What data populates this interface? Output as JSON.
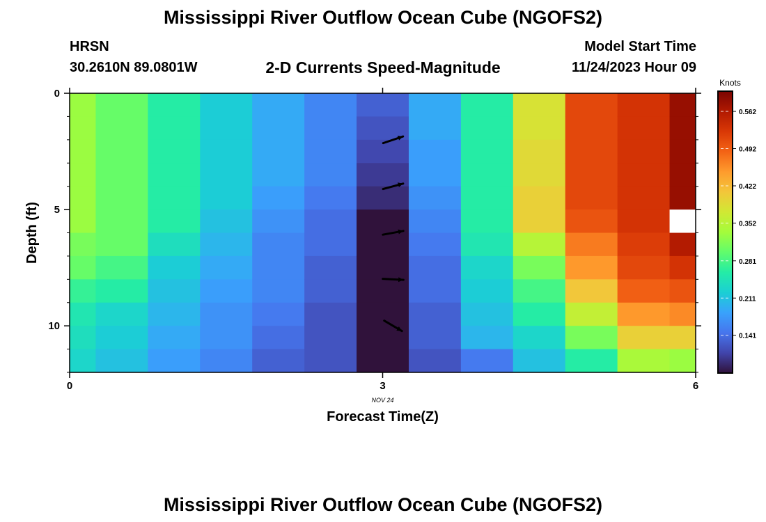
{
  "page": {
    "title": "Mississippi River Outflow Ocean Cube (NGOFS2)",
    "title_repeat": "Mississippi River Outflow Ocean Cube (NGOFS2)",
    "station_name": "HRSN",
    "station_coords": "30.2610N  89.0801W",
    "chart_subtitle": "2-D Currents Speed-Magnitude",
    "model_start_label": "Model Start Time",
    "model_start_value": "11/24/2023 Hour 09"
  },
  "chart_data": {
    "type": "heatmap",
    "title": "2-D Currents Speed-Magnitude",
    "xlabel": "Forecast Time(Z)",
    "ylabel": "Depth (ft)",
    "x_ticks": [
      "0",
      "3",
      "6"
    ],
    "x_tick_values": [
      0,
      3,
      6
    ],
    "y_ticks": [
      "0",
      "5",
      "10"
    ],
    "y_tick_values": [
      0,
      5,
      10
    ],
    "date_annotation": "NOV 24",
    "xlim": [
      0,
      6
    ],
    "ylim": [
      0,
      12
    ],
    "y_inverted": true,
    "x_centers": [
      0,
      0.5,
      1,
      1.5,
      2,
      2.5,
      3,
      3.5,
      4,
      4.5,
      5,
      5.5,
      6
    ],
    "depths": [
      0.5,
      1.5,
      2.5,
      3.5,
      4.5,
      5.5,
      6.5,
      7.5,
      8.5,
      9.5,
      10.5,
      11.5
    ],
    "speed_knots": [
      [
        0.33,
        0.33,
        0.33,
        0.33,
        0.33,
        0.33,
        0.31,
        0.3,
        0.27,
        0.25,
        0.24,
        0.23
      ],
      [
        0.3,
        0.3,
        0.3,
        0.3,
        0.3,
        0.3,
        0.3,
        0.28,
        0.26,
        0.23,
        0.22,
        0.21
      ],
      [
        0.26,
        0.26,
        0.26,
        0.26,
        0.26,
        0.26,
        0.24,
        0.22,
        0.21,
        0.2,
        0.19,
        0.18
      ],
      [
        0.22,
        0.22,
        0.22,
        0.22,
        0.22,
        0.21,
        0.2,
        0.19,
        0.18,
        0.17,
        0.17,
        0.16
      ],
      [
        0.19,
        0.19,
        0.19,
        0.19,
        0.18,
        0.17,
        0.16,
        0.16,
        0.16,
        0.15,
        0.14,
        0.13
      ],
      [
        0.16,
        0.16,
        0.16,
        0.16,
        0.15,
        0.14,
        0.14,
        0.13,
        0.13,
        0.12,
        0.12,
        0.12
      ],
      [
        0.13,
        0.12,
        0.11,
        0.1,
        0.09,
        0.04,
        0.03,
        0.02,
        0.02,
        0.02,
        0.02,
        0.02
      ],
      [
        0.19,
        0.19,
        0.18,
        0.18,
        0.17,
        0.16,
        0.15,
        0.14,
        0.14,
        0.13,
        0.13,
        0.12
      ],
      [
        0.26,
        0.26,
        0.26,
        0.26,
        0.26,
        0.26,
        0.25,
        0.23,
        0.22,
        0.21,
        0.2,
        0.15
      ],
      [
        0.38,
        0.38,
        0.39,
        0.39,
        0.4,
        0.4,
        0.35,
        0.31,
        0.28,
        0.26,
        0.23,
        0.21
      ],
      [
        0.51,
        0.51,
        0.51,
        0.51,
        0.51,
        0.5,
        0.47,
        0.45,
        0.41,
        0.36,
        0.31,
        0.26
      ],
      [
        0.53,
        0.53,
        0.53,
        0.53,
        0.53,
        0.53,
        0.52,
        0.51,
        0.49,
        0.45,
        0.4,
        0.34
      ],
      [
        0.58,
        0.58,
        0.58,
        0.58,
        0.58,
        null,
        0.56,
        0.53,
        0.5,
        0.46,
        0.4,
        0.33
      ]
    ],
    "vectors": [
      {
        "x": 3,
        "depth": 2,
        "u": 0.95,
        "v": 0.32
      },
      {
        "x": 3,
        "depth": 4,
        "u": 0.96,
        "v": 0.26
      },
      {
        "x": 3,
        "depth": 6,
        "u": 0.98,
        "v": 0.18
      },
      {
        "x": 3,
        "depth": 8,
        "u": 0.99,
        "v": -0.05
      },
      {
        "x": 3,
        "depth": 10,
        "u": 0.85,
        "v": -0.5
      }
    ],
    "colorbar": {
      "label": "Knots",
      "ticks": [
        "0.562",
        "0.492",
        "0.422",
        "0.352",
        "0.281",
        "0.211",
        "0.141"
      ],
      "tick_values": [
        0.562,
        0.492,
        0.422,
        0.352,
        0.281,
        0.211,
        0.141
      ],
      "range": [
        0.07,
        0.6
      ]
    },
    "colormap": [
      "#30123b",
      "#4145ab",
      "#4675ed",
      "#39a2fc",
      "#1bcfd4",
      "#24eca6",
      "#61fc6c",
      "#a4fc3b",
      "#d1e834",
      "#f3c63a",
      "#fe9b2d",
      "#f36315",
      "#d93806",
      "#b11901",
      "#7a0402"
    ],
    "missing_color": "#ffffff"
  }
}
